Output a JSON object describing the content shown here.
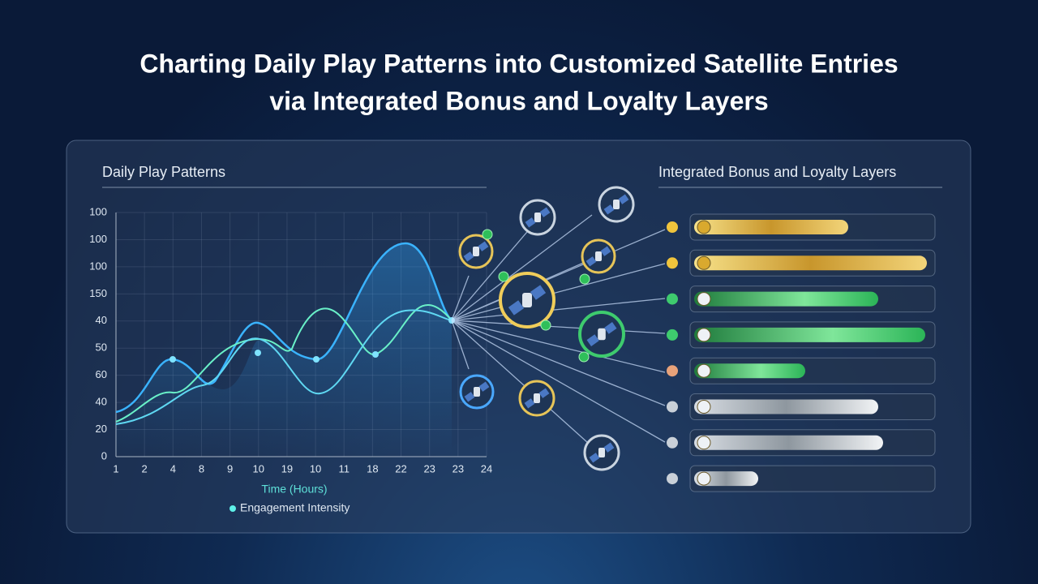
{
  "header": {
    "title_lines": [
      "Charting Daily Play Patterns into Customized Satellite Entries",
      "via Integrated Bonus and Loyalty Layers"
    ]
  },
  "left_panel": {
    "heading": "Daily Play Patterns",
    "y_labels": [
      "100",
      "100",
      "100",
      "150",
      "40",
      "50",
      "60",
      "40",
      "20",
      "0"
    ],
    "x_labels": [
      "1",
      "2",
      "4",
      "8",
      "9",
      "10",
      "19",
      "10",
      "11",
      "18",
      "22",
      "23",
      "23",
      "24"
    ],
    "x_axis_label": "Time (Hours)",
    "legend": "Engagement Intensity"
  },
  "right_panel": {
    "heading": "Integrated Bonus and Loyalty Layers"
  }
}
